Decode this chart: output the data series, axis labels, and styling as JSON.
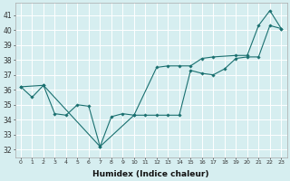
{
  "xlabel": "Humidex (Indice chaleur)",
  "ylabel": "",
  "bg_color": "#d6eef0",
  "grid_color": "#ffffff",
  "line_color": "#1a7070",
  "xlim": [
    -0.5,
    23.5
  ],
  "ylim": [
    31.5,
    41.8
  ],
  "yticks": [
    32,
    33,
    34,
    35,
    36,
    37,
    38,
    39,
    40,
    41
  ],
  "xticks": [
    0,
    1,
    2,
    3,
    4,
    5,
    6,
    7,
    8,
    9,
    10,
    11,
    12,
    13,
    14,
    15,
    16,
    17,
    18,
    19,
    20,
    21,
    22,
    23
  ],
  "line1_x": [
    0,
    1,
    2,
    3,
    4,
    5,
    6,
    7,
    8,
    9,
    10,
    11,
    12,
    13,
    14,
    15,
    16,
    17,
    18,
    19,
    20,
    21,
    22,
    23
  ],
  "line1_y": [
    36.2,
    35.5,
    36.3,
    34.4,
    34.3,
    35.0,
    34.9,
    32.2,
    34.2,
    34.4,
    34.3,
    34.3,
    34.3,
    34.3,
    34.3,
    37.3,
    37.1,
    37.0,
    37.4,
    38.1,
    38.2,
    38.2,
    40.3,
    40.1
  ],
  "line2_x": [
    0,
    2,
    7,
    10,
    12,
    13,
    14,
    15,
    16,
    17,
    19,
    20,
    21,
    22,
    23
  ],
  "line2_y": [
    36.2,
    36.3,
    32.2,
    34.3,
    37.5,
    37.6,
    37.6,
    37.6,
    38.1,
    38.2,
    38.3,
    38.3,
    40.3,
    41.3,
    40.1
  ],
  "xtick_fontsize": 4.5,
  "ytick_fontsize": 5.5,
  "xlabel_fontsize": 6.5
}
